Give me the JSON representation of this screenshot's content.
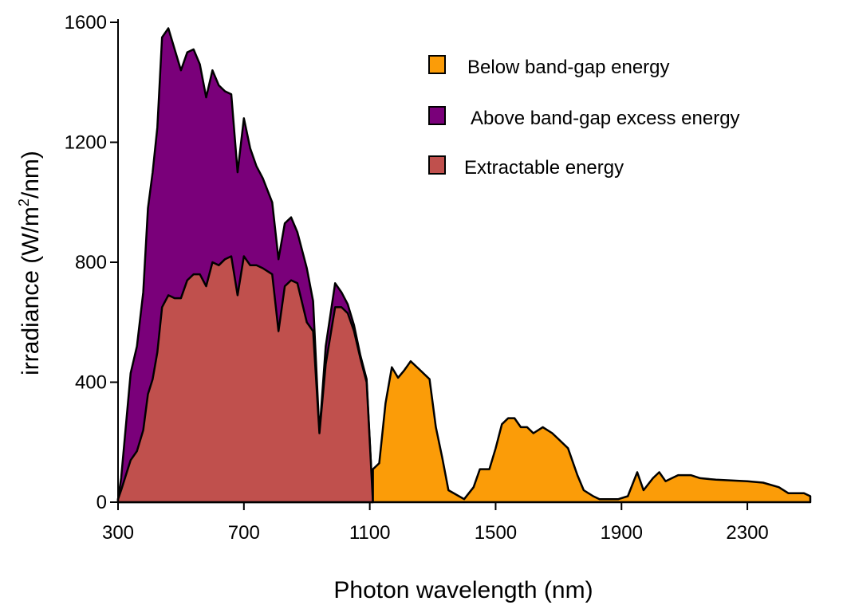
{
  "chart_data": {
    "type": "area",
    "title": "",
    "xlabel": "Photon wavelength (nm)",
    "ylabel_main": "irradiance (W/m",
    "ylabel_sup": "2",
    "ylabel_tail": "/nm)",
    "xlim": [
      300,
      2500
    ],
    "ylim": [
      0,
      1600
    ],
    "xticks": [
      300,
      700,
      1100,
      1500,
      1900,
      2300
    ],
    "yticks": [
      0,
      400,
      800,
      1200,
      1600
    ],
    "legend_position": "top-right",
    "series": [
      {
        "name": "Below band-gap energy",
        "color": "#fb9c08",
        "points": [
          [
            1110,
            110
          ],
          [
            1130,
            130
          ],
          [
            1150,
            330
          ],
          [
            1170,
            450
          ],
          [
            1190,
            415
          ],
          [
            1210,
            440
          ],
          [
            1230,
            470
          ],
          [
            1260,
            440
          ],
          [
            1290,
            410
          ],
          [
            1310,
            250
          ],
          [
            1330,
            150
          ],
          [
            1350,
            40
          ],
          [
            1400,
            10
          ],
          [
            1430,
            50
          ],
          [
            1450,
            110
          ],
          [
            1480,
            110
          ],
          [
            1500,
            180
          ],
          [
            1520,
            260
          ],
          [
            1540,
            280
          ],
          [
            1560,
            280
          ],
          [
            1580,
            250
          ],
          [
            1600,
            250
          ],
          [
            1620,
            230
          ],
          [
            1650,
            250
          ],
          [
            1680,
            230
          ],
          [
            1700,
            210
          ],
          [
            1730,
            180
          ],
          [
            1760,
            90
          ],
          [
            1780,
            40
          ],
          [
            1810,
            20
          ],
          [
            1830,
            10
          ],
          [
            1890,
            10
          ],
          [
            1920,
            20
          ],
          [
            1950,
            100
          ],
          [
            1970,
            40
          ],
          [
            2000,
            80
          ],
          [
            2020,
            100
          ],
          [
            2040,
            70
          ],
          [
            2060,
            80
          ],
          [
            2080,
            90
          ],
          [
            2120,
            90
          ],
          [
            2150,
            80
          ],
          [
            2200,
            75
          ],
          [
            2300,
            70
          ],
          [
            2350,
            65
          ],
          [
            2400,
            50
          ],
          [
            2430,
            30
          ],
          [
            2480,
            30
          ],
          [
            2500,
            20
          ]
        ]
      },
      {
        "name": "Above band-gap excess energy",
        "color": "#7a007a",
        "points": [
          [
            300,
            10
          ],
          [
            310,
            80
          ],
          [
            340,
            430
          ],
          [
            360,
            520
          ],
          [
            380,
            700
          ],
          [
            395,
            980
          ],
          [
            410,
            1100
          ],
          [
            425,
            1250
          ],
          [
            440,
            1550
          ],
          [
            460,
            1580
          ],
          [
            480,
            1510
          ],
          [
            500,
            1440
          ],
          [
            520,
            1500
          ],
          [
            540,
            1510
          ],
          [
            560,
            1460
          ],
          [
            580,
            1350
          ],
          [
            600,
            1440
          ],
          [
            620,
            1390
          ],
          [
            640,
            1370
          ],
          [
            660,
            1360
          ],
          [
            680,
            1100
          ],
          [
            700,
            1280
          ],
          [
            720,
            1180
          ],
          [
            740,
            1120
          ],
          [
            760,
            1080
          ],
          [
            790,
            1000
          ],
          [
            810,
            810
          ],
          [
            830,
            930
          ],
          [
            850,
            950
          ],
          [
            870,
            900
          ],
          [
            900,
            780
          ],
          [
            920,
            670
          ],
          [
            940,
            230
          ],
          [
            960,
            520
          ],
          [
            990,
            730
          ],
          [
            1010,
            700
          ],
          [
            1030,
            660
          ],
          [
            1050,
            590
          ],
          [
            1070,
            490
          ],
          [
            1090,
            410
          ],
          [
            1110,
            0
          ]
        ]
      },
      {
        "name": "Extractable energy",
        "color": "#c0504d",
        "points": [
          [
            300,
            10
          ],
          [
            310,
            40
          ],
          [
            340,
            140
          ],
          [
            360,
            170
          ],
          [
            380,
            240
          ],
          [
            395,
            360
          ],
          [
            410,
            410
          ],
          [
            425,
            500
          ],
          [
            440,
            650
          ],
          [
            460,
            690
          ],
          [
            480,
            680
          ],
          [
            500,
            680
          ],
          [
            520,
            740
          ],
          [
            540,
            760
          ],
          [
            560,
            760
          ],
          [
            580,
            720
          ],
          [
            600,
            800
          ],
          [
            620,
            790
          ],
          [
            640,
            810
          ],
          [
            660,
            820
          ],
          [
            680,
            690
          ],
          [
            700,
            820
          ],
          [
            720,
            790
          ],
          [
            740,
            790
          ],
          [
            760,
            780
          ],
          [
            790,
            760
          ],
          [
            810,
            570
          ],
          [
            830,
            720
          ],
          [
            850,
            740
          ],
          [
            870,
            730
          ],
          [
            900,
            600
          ],
          [
            920,
            570
          ],
          [
            940,
            230
          ],
          [
            960,
            460
          ],
          [
            990,
            650
          ],
          [
            1010,
            650
          ],
          [
            1030,
            630
          ],
          [
            1050,
            570
          ],
          [
            1070,
            480
          ],
          [
            1090,
            400
          ],
          [
            1110,
            0
          ]
        ]
      }
    ]
  }
}
